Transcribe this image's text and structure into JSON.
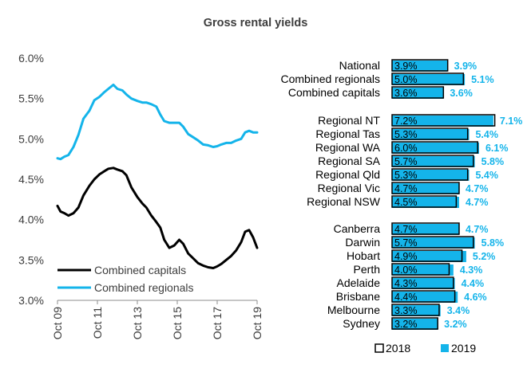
{
  "colors": {
    "capitals": "#000000",
    "regionals": "#14b4ea",
    "bar2019": "#14b4ea",
    "bar2018_fill": "#ffffff",
    "bar2018_stroke": "#000000",
    "value2019_text": "#14b4ea",
    "axis": "#8c8c8c",
    "text": "#3d3d3d"
  },
  "chart_data": [
    {
      "type": "line",
      "title": "Gross rental yields",
      "xlabel": "",
      "ylabel": "",
      "ylim": [
        3.0,
        6.0
      ],
      "yticks": [
        "6.0%",
        "5.5%",
        "5.0%",
        "4.5%",
        "4.0%",
        "3.5%",
        "3.0%"
      ],
      "ytick_values": [
        6.0,
        5.5,
        5.0,
        4.5,
        4.0,
        3.5,
        3.0
      ],
      "xlim": [
        2009.75,
        2019.75
      ],
      "xticks": [
        "Oct 09",
        "Oct 11",
        "Oct 13",
        "Oct 15",
        "Oct 17",
        "Oct 19"
      ],
      "xtick_values": [
        2009.75,
        2011.75,
        2013.75,
        2015.75,
        2017.75,
        2019.75
      ],
      "legend_position": "bottom-left",
      "series": [
        {
          "name": "Combined capitals",
          "color_key": "capitals",
          "x": [
            2009.75,
            2009.9,
            2010.1,
            2010.3,
            2010.55,
            2010.8,
            2011.05,
            2011.35,
            2011.6,
            2011.85,
            2012.1,
            2012.3,
            2012.55,
            2012.75,
            2013.0,
            2013.2,
            2013.45,
            2013.75,
            2014.0,
            2014.2,
            2014.45,
            2014.7,
            2014.9,
            2015.1,
            2015.35,
            2015.6,
            2015.85,
            2016.05,
            2016.3,
            2016.55,
            2016.8,
            2017.05,
            2017.3,
            2017.55,
            2017.75,
            2017.95,
            2018.2,
            2018.45,
            2018.7,
            2018.95,
            2019.15,
            2019.35,
            2019.55,
            2019.75
          ],
          "values": [
            4.17,
            4.1,
            4.08,
            4.05,
            4.08,
            4.15,
            4.3,
            4.42,
            4.5,
            4.56,
            4.6,
            4.63,
            4.64,
            4.62,
            4.6,
            4.55,
            4.4,
            4.28,
            4.2,
            4.15,
            4.05,
            3.97,
            3.9,
            3.75,
            3.65,
            3.68,
            3.75,
            3.7,
            3.58,
            3.52,
            3.46,
            3.43,
            3.41,
            3.4,
            3.42,
            3.45,
            3.5,
            3.55,
            3.62,
            3.72,
            3.85,
            3.87,
            3.78,
            3.65
          ]
        },
        {
          "name": "Combined regionals",
          "color_key": "regionals",
          "x": [
            2009.75,
            2009.9,
            2010.1,
            2010.3,
            2010.55,
            2010.8,
            2011.05,
            2011.35,
            2011.6,
            2011.85,
            2012.1,
            2012.3,
            2012.55,
            2012.75,
            2013.0,
            2013.2,
            2013.45,
            2013.75,
            2014.0,
            2014.2,
            2014.45,
            2014.7,
            2014.9,
            2015.1,
            2015.35,
            2015.6,
            2015.85,
            2016.05,
            2016.3,
            2016.55,
            2016.8,
            2017.05,
            2017.3,
            2017.55,
            2017.75,
            2017.95,
            2018.2,
            2018.45,
            2018.7,
            2018.95,
            2019.15,
            2019.35,
            2019.55,
            2019.75
          ],
          "values": [
            4.76,
            4.75,
            4.78,
            4.8,
            4.9,
            5.05,
            5.25,
            5.35,
            5.48,
            5.52,
            5.58,
            5.62,
            5.67,
            5.62,
            5.6,
            5.55,
            5.5,
            5.47,
            5.45,
            5.45,
            5.43,
            5.4,
            5.3,
            5.22,
            5.2,
            5.2,
            5.2,
            5.15,
            5.06,
            5.02,
            4.98,
            4.93,
            4.92,
            4.9,
            4.91,
            4.93,
            4.95,
            4.95,
            4.98,
            5.0,
            5.08,
            5.1,
            5.08,
            5.08
          ]
        }
      ]
    },
    {
      "type": "bar",
      "orientation": "horizontal",
      "xlim": [
        0,
        7.5
      ],
      "legend_position": "bottom",
      "legend": [
        "2018",
        "2019"
      ],
      "groups": [
        {
          "items": [
            {
              "category": "National",
              "v2018": 3.9,
              "v2019": 3.9,
              "label2018": "3.9%",
              "label2019": "3.9%"
            },
            {
              "category": "Combined regionals",
              "v2018": 5.0,
              "v2019": 5.1,
              "label2018": "5.0%",
              "label2019": "5.1%"
            },
            {
              "category": "Combined capitals",
              "v2018": 3.6,
              "v2019": 3.6,
              "label2018": "3.6%",
              "label2019": "3.6%"
            }
          ]
        },
        {
          "items": [
            {
              "category": "Regional NT",
              "v2018": 7.2,
              "v2019": 7.1,
              "label2018": "7.2%",
              "label2019": "7.1%"
            },
            {
              "category": "Regional Tas",
              "v2018": 5.3,
              "v2019": 5.4,
              "label2018": "5.3%",
              "label2019": "5.4%"
            },
            {
              "category": "Regional WA",
              "v2018": 6.0,
              "v2019": 6.1,
              "label2018": "6.0%",
              "label2019": "6.1%"
            },
            {
              "category": "Regional SA",
              "v2018": 5.7,
              "v2019": 5.8,
              "label2018": "5.7%",
              "label2019": "5.8%"
            },
            {
              "category": "Regional Qld",
              "v2018": 5.3,
              "v2019": 5.4,
              "label2018": "5.3%",
              "label2019": "5.4%"
            },
            {
              "category": "Regional Vic",
              "v2018": 4.7,
              "v2019": 4.7,
              "label2018": "4.7%",
              "label2019": "4.7%"
            },
            {
              "category": "Regional NSW",
              "v2018": 4.5,
              "v2019": 4.7,
              "label2018": "4.5%",
              "label2019": "4.7%"
            }
          ]
        },
        {
          "items": [
            {
              "category": "Canberra",
              "v2018": 4.7,
              "v2019": 4.7,
              "label2018": "4.7%",
              "label2019": "4.7%"
            },
            {
              "category": "Darwin",
              "v2018": 5.7,
              "v2019": 5.8,
              "label2018": "5.7%",
              "label2019": "5.8%"
            },
            {
              "category": "Hobart",
              "v2018": 4.9,
              "v2019": 5.2,
              "label2018": "4.9%",
              "label2019": "5.2%"
            },
            {
              "category": "Perth",
              "v2018": 4.0,
              "v2019": 4.3,
              "label2018": "4.0%",
              "label2019": "4.3%"
            },
            {
              "category": "Adelaide",
              "v2018": 4.3,
              "v2019": 4.4,
              "label2018": "4.3%",
              "label2019": "4.4%"
            },
            {
              "category": "Brisbane",
              "v2018": 4.4,
              "v2019": 4.6,
              "label2018": "4.4%",
              "label2019": "4.6%"
            },
            {
              "category": "Melbourne",
              "v2018": 3.3,
              "v2019": 3.4,
              "label2018": "3.3%",
              "label2019": "3.4%"
            },
            {
              "category": "Sydney",
              "v2018": 3.2,
              "v2019": 3.2,
              "label2018": "3.2%",
              "label2019": "3.2%"
            }
          ]
        }
      ]
    }
  ]
}
